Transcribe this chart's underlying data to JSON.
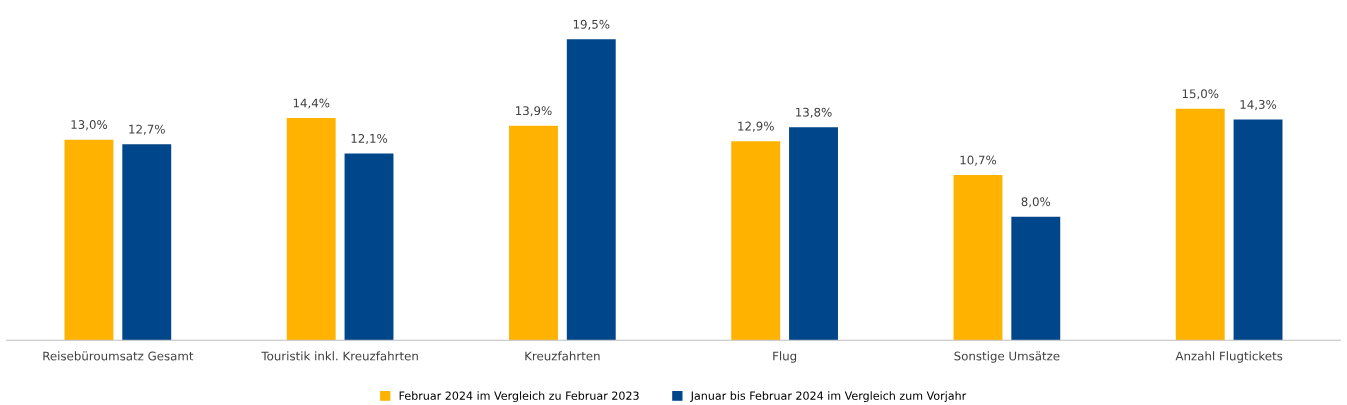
{
  "chart_data": {
    "type": "bar",
    "categories": [
      "Reisebüroumsatz Gesamt",
      "Touristik inkl. Kreuzfahrten",
      "Kreuzfahrten",
      "Flug",
      "Sonstige Umsätze",
      "Anzahl Flugtickets"
    ],
    "series": [
      {
        "name": "Februar 2024 im Vergleich zu Februar 2023",
        "color": "#ffb300",
        "values": [
          13.0,
          14.4,
          13.9,
          12.9,
          10.7,
          15.0
        ],
        "value_labels": [
          "13,0%",
          "14,4%",
          "13,9%",
          "12,9%",
          "10,7%",
          "15,0%"
        ]
      },
      {
        "name": "Januar bis Februar 2024 im Vergleich zum Vorjahr",
        "color": "#00468b",
        "values": [
          12.7,
          12.1,
          19.5,
          13.8,
          8.0,
          14.3
        ],
        "value_labels": [
          "12,7%",
          "12,1%",
          "19,5%",
          "13,8%",
          "8,0%",
          "14,3%"
        ]
      }
    ],
    "legend": "bottom",
    "grid": false,
    "tick_labels": "x"
  }
}
